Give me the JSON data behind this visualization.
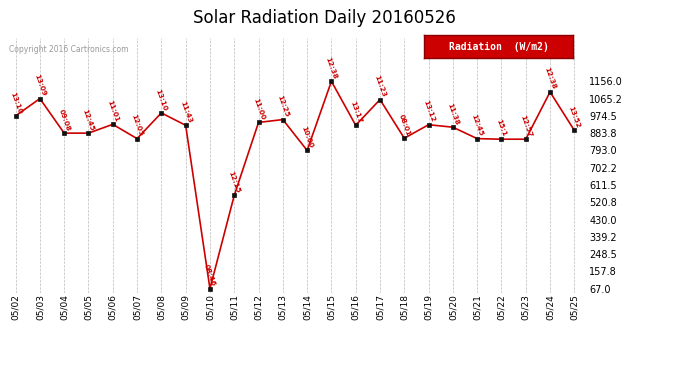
{
  "title": "Solar Radiation Daily 20160526",
  "copyright": "Copyright 2016 Cartronics.com",
  "legend_label": "Radiation  (W/m2)",
  "background_color": "#ffffff",
  "line_color": "#cc0000",
  "marker_color": "#111111",
  "grid_color": "#bbbbbb",
  "yticks": [
    67.0,
    157.8,
    248.5,
    339.2,
    430.0,
    520.8,
    611.5,
    702.2,
    793.0,
    883.8,
    974.5,
    1065.2,
    1156.0
  ],
  "dates": [
    "05/02",
    "05/03",
    "05/04",
    "05/05",
    "05/06",
    "05/07",
    "05/08",
    "05/09",
    "05/10",
    "05/11",
    "05/12",
    "05/13",
    "05/14",
    "05/15",
    "05/16",
    "05/17",
    "05/18",
    "05/19",
    "05/20",
    "05/21",
    "05/22",
    "05/23",
    "05/24",
    "05/25"
  ],
  "values": [
    974.5,
    1065.2,
    883.8,
    883.8,
    930.0,
    855.0,
    990.0,
    925.0,
    67.0,
    557.0,
    940.0,
    955.0,
    793.0,
    1156.0,
    925.0,
    1060.0,
    857.0,
    928.0,
    915.0,
    855.0,
    852.0,
    852.0,
    1100.0,
    898.0
  ],
  "time_labels": [
    "13:10",
    "13:09",
    "09:08",
    "12:45",
    "11:01",
    "12:05",
    "13:10",
    "11:43",
    "08:46",
    "12:15",
    "11:00",
    "12:25",
    "10:00",
    "12:38",
    "13:17",
    "11:23",
    "08:01",
    "13:12",
    "11:38",
    "12:45",
    "15:1",
    "12:57",
    "12:38",
    "13:52"
  ],
  "ymin": 67.0,
  "ymax": 1156.0,
  "title_fontsize": 12
}
